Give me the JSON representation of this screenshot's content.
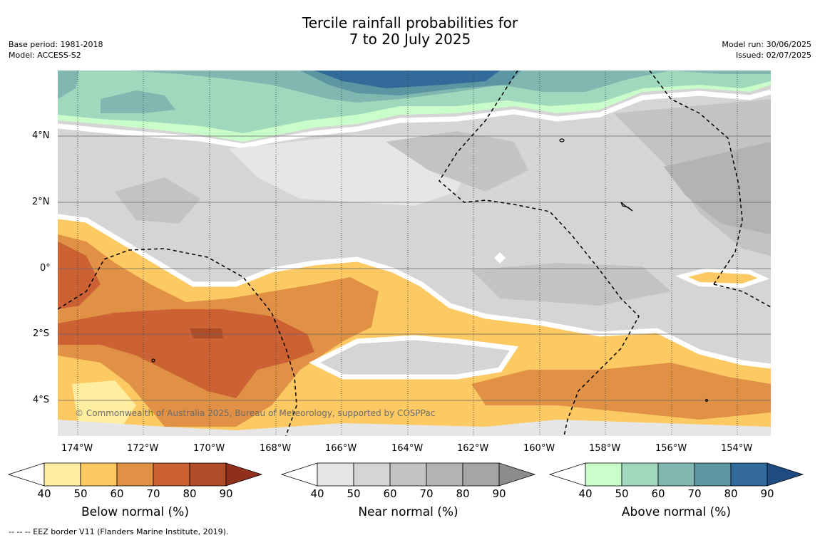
{
  "title": {
    "line1": "Tercile rainfall probabilities for",
    "line2": "7 to 20 July 2025"
  },
  "info_left": {
    "base_period": "Base period: 1981-2018",
    "model": "Model: ACCESS-S2"
  },
  "info_right": {
    "model_run": "Model run: 30/06/2025",
    "issued": "Issued: 02/07/2025"
  },
  "map": {
    "lat_labels": [
      "4°N",
      "2°N",
      "0°",
      "2°S",
      "4°S"
    ],
    "lon_labels": [
      "174°W",
      "172°W",
      "170°W",
      "168°W",
      "166°W",
      "164°W",
      "162°W",
      "160°W",
      "158°W",
      "156°W",
      "154°W"
    ],
    "copyright": "© Commonwealth of Australia 2025, Bureau of Meteorology, supported by COSPPac"
  },
  "colorbars": [
    {
      "label": "Below normal (%)",
      "ticks": [
        "40",
        "50",
        "60",
        "70",
        "80",
        "90"
      ],
      "colors": [
        "#ffeda0",
        "#fdc962",
        "#e09145",
        "#cc6233",
        "#b04c28",
        "#8f2f1c"
      ]
    },
    {
      "label": "Near normal (%)",
      "ticks": [
        "40",
        "50",
        "60",
        "70",
        "80",
        "90"
      ],
      "colors": [
        "#e6e6e6",
        "#d5d5d5",
        "#c3c3c3",
        "#b3b3b3",
        "#a5a5a5",
        "#8c8c8c"
      ]
    },
    {
      "label": "Above normal (%)",
      "ticks": [
        "40",
        "50",
        "60",
        "70",
        "80",
        "90"
      ],
      "colors": [
        "#c9fdc9",
        "#a0d8bd",
        "#80b8b1",
        "#5c96a2",
        "#326a9a",
        "#1e4b82"
      ]
    }
  ],
  "footer": {
    "eez_note": "-- -- -- EEZ border V11 (Flanders Marine Institute, 2019)."
  }
}
